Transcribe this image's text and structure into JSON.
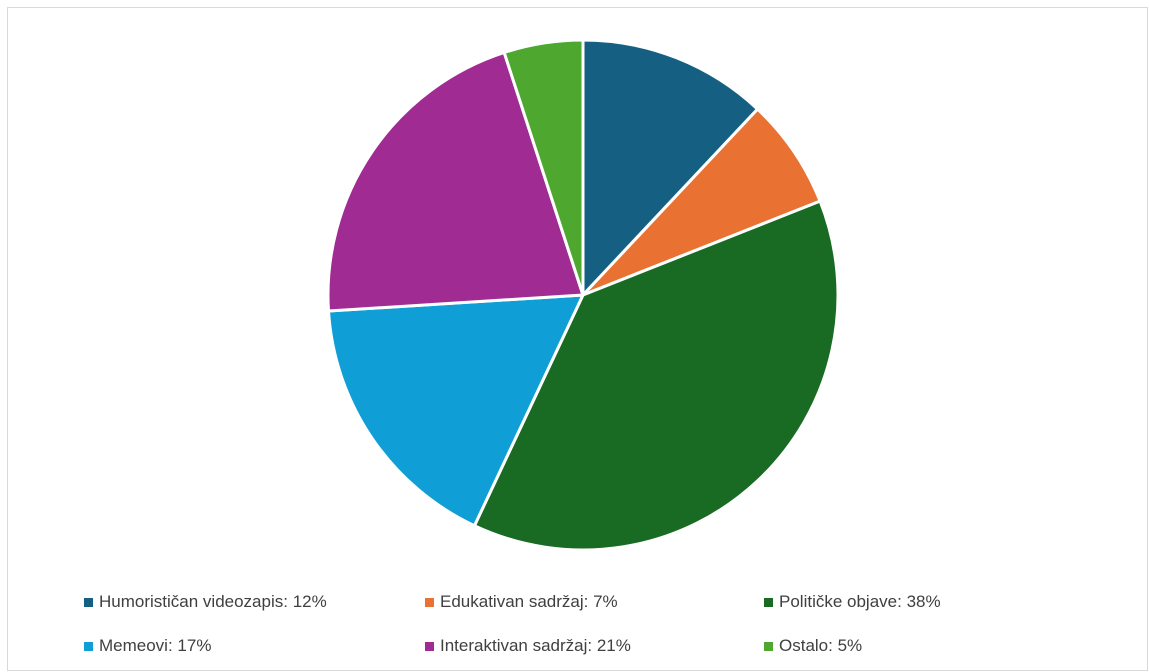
{
  "chart_data": {
    "type": "pie",
    "title": "",
    "slices": [
      {
        "label": "Humorističan videozapis",
        "value": 12,
        "color": "#156082",
        "legend_text": "Humorističan videozapis: 12%"
      },
      {
        "label": "Edukativan sadržaj",
        "value": 7,
        "color": "#E97132",
        "legend_text": "Edukativan sadržaj: 7%"
      },
      {
        "label": "Političke objave",
        "value": 38,
        "color": "#196B24",
        "legend_text": "Političke objave: 38%"
      },
      {
        "label": "Memeovi",
        "value": 17,
        "color": "#0F9ED5",
        "legend_text": "Memeovi: 17%"
      },
      {
        "label": "Interaktivan sadržaj",
        "value": 21,
        "color": "#A02B93",
        "legend_text": "Interaktivan sadržaj: 21%"
      },
      {
        "label": "Ostalo",
        "value": 5,
        "color": "#4EA72E",
        "legend_text": "Ostalo: 5%"
      }
    ],
    "legend_position": "bottom",
    "grid": false
  }
}
